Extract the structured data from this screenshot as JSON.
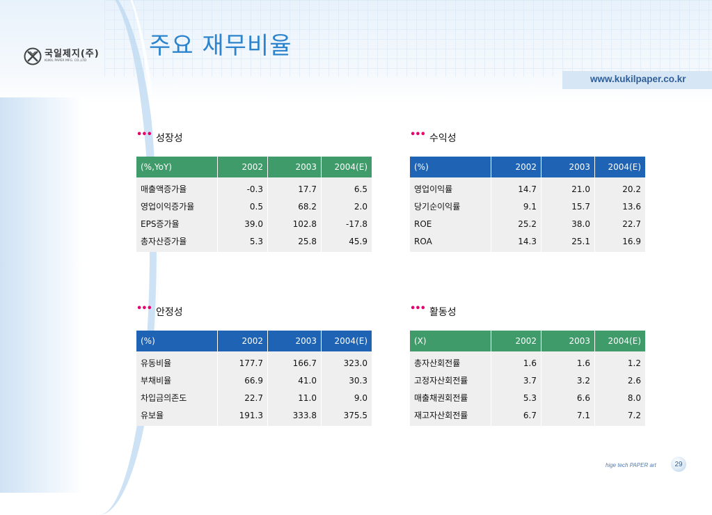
{
  "header": {
    "title": "주요 재무비율",
    "logo_ko": "국일제지(주)",
    "logo_en": "KUKIL PAPER MFG. CO.,LTD",
    "url": "www.kukilpaper.co.kr"
  },
  "sections": [
    {
      "title": "성장성",
      "color": "#3f9b6a",
      "header": [
        "(%,YoY)",
        "2002",
        "2003",
        "2004(E)"
      ],
      "rows": [
        [
          "매출액증가율",
          "-0.3",
          "17.7",
          "6.5"
        ],
        [
          "영업이익증가율",
          "0.5",
          "68.2",
          "2.0"
        ],
        [
          "EPS증가율",
          "39.0",
          "102.8",
          "-17.8"
        ],
        [
          "총자산증가율",
          "5.3",
          "25.8",
          "45.9"
        ]
      ]
    },
    {
      "title": "수익성",
      "color": "#1e63b4",
      "header": [
        "(%)",
        "2002",
        "2003",
        "2004(E)"
      ],
      "rows": [
        [
          "영업이익률",
          "14.7",
          "21.0",
          "20.2"
        ],
        [
          "당기순이익률",
          "9.1",
          "15.7",
          "13.6"
        ],
        [
          "ROE",
          "25.2",
          "38.0",
          "22.7"
        ],
        [
          "ROA",
          "14.3",
          "25.1",
          "16.9"
        ]
      ]
    },
    {
      "title": "안정성",
      "color": "#1e63b4",
      "header": [
        "(%)",
        "2002",
        "2003",
        "2004(E)"
      ],
      "rows": [
        [
          "유동비율",
          "177.7",
          "166.7",
          "323.0"
        ],
        [
          "부채비율",
          "66.9",
          "41.0",
          "30.3"
        ],
        [
          "차입금의존도",
          "22.7",
          "11.0",
          "9.0"
        ],
        [
          "유보율",
          "191.3",
          "333.8",
          "375.5"
        ]
      ]
    },
    {
      "title": "활동성",
      "color": "#3f9b6a",
      "header": [
        "(X)",
        "2002",
        "2003",
        "2004(E)"
      ],
      "rows": [
        [
          "총자산회전률",
          "1.6",
          "1.6",
          "1.2"
        ],
        [
          "고정자산회전률",
          "3.7",
          "3.2",
          "2.6"
        ],
        [
          "매출채권회전률",
          "5.3",
          "6.6",
          "8.0"
        ],
        [
          "재고자산회전률",
          "6.7",
          "7.1",
          "7.2"
        ]
      ]
    }
  ],
  "footer": {
    "tagline": "hige tech PAPER art",
    "page_number": "29"
  }
}
